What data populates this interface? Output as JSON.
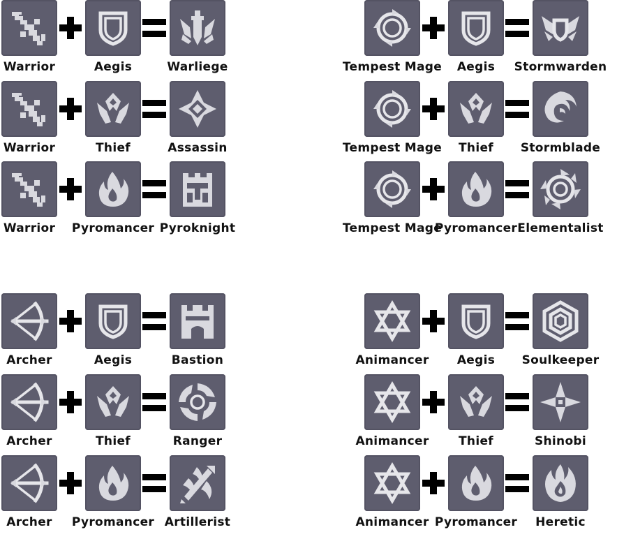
{
  "recipes": [
    {
      "a": {
        "name": "Warrior",
        "icon": "warrior-icon"
      },
      "b": {
        "name": "Aegis",
        "icon": "aegis-icon"
      },
      "result": {
        "name": "Warliege",
        "icon": "warliege-icon"
      }
    },
    {
      "a": {
        "name": "Warrior",
        "icon": "warrior-icon"
      },
      "b": {
        "name": "Thief",
        "icon": "thief-icon"
      },
      "result": {
        "name": "Assassin",
        "icon": "assassin-icon"
      }
    },
    {
      "a": {
        "name": "Warrior",
        "icon": "warrior-icon"
      },
      "b": {
        "name": "Pyromancer",
        "icon": "pyromancer-icon"
      },
      "result": {
        "name": "Pyroknight",
        "icon": "pyroknight-icon"
      }
    },
    {
      "a": {
        "name": "Tempest Mage",
        "icon": "tempest-mage-icon"
      },
      "b": {
        "name": "Aegis",
        "icon": "aegis-icon"
      },
      "result": {
        "name": "Stormwarden",
        "icon": "stormwarden-icon"
      }
    },
    {
      "a": {
        "name": "Tempest Mage",
        "icon": "tempest-mage-icon"
      },
      "b": {
        "name": "Thief",
        "icon": "thief-icon"
      },
      "result": {
        "name": "Stormblade",
        "icon": "stormblade-icon"
      }
    },
    {
      "a": {
        "name": "Tempest Mage",
        "icon": "tempest-mage-icon"
      },
      "b": {
        "name": "Pyromancer",
        "icon": "pyromancer-icon"
      },
      "result": {
        "name": "Elementalist",
        "icon": "elementalist-icon"
      }
    },
    {
      "a": {
        "name": "Archer",
        "icon": "archer-icon"
      },
      "b": {
        "name": "Aegis",
        "icon": "aegis-icon"
      },
      "result": {
        "name": "Bastion",
        "icon": "bastion-icon"
      }
    },
    {
      "a": {
        "name": "Archer",
        "icon": "archer-icon"
      },
      "b": {
        "name": "Thief",
        "icon": "thief-icon"
      },
      "result": {
        "name": "Ranger",
        "icon": "ranger-icon"
      }
    },
    {
      "a": {
        "name": "Archer",
        "icon": "archer-icon"
      },
      "b": {
        "name": "Pyromancer",
        "icon": "pyromancer-icon"
      },
      "result": {
        "name": "Artillerist",
        "icon": "artillerist-icon"
      }
    },
    {
      "a": {
        "name": "Animancer",
        "icon": "animancer-icon"
      },
      "b": {
        "name": "Aegis",
        "icon": "aegis-icon"
      },
      "result": {
        "name": "Soulkeeper",
        "icon": "soulkeeper-icon"
      }
    },
    {
      "a": {
        "name": "Animancer",
        "icon": "animancer-icon"
      },
      "b": {
        "name": "Thief",
        "icon": "thief-icon"
      },
      "result": {
        "name": "Shinobi",
        "icon": "shinobi-icon"
      }
    },
    {
      "a": {
        "name": "Animancer",
        "icon": "animancer-icon"
      },
      "b": {
        "name": "Pyromancer",
        "icon": "pyromancer-icon"
      },
      "result": {
        "name": "Heretic",
        "icon": "heretic-icon"
      }
    }
  ],
  "colors": {
    "tile": "#5e5d6e",
    "icon": "#e6e6ea",
    "operator": "#000000",
    "text": "#111111"
  }
}
